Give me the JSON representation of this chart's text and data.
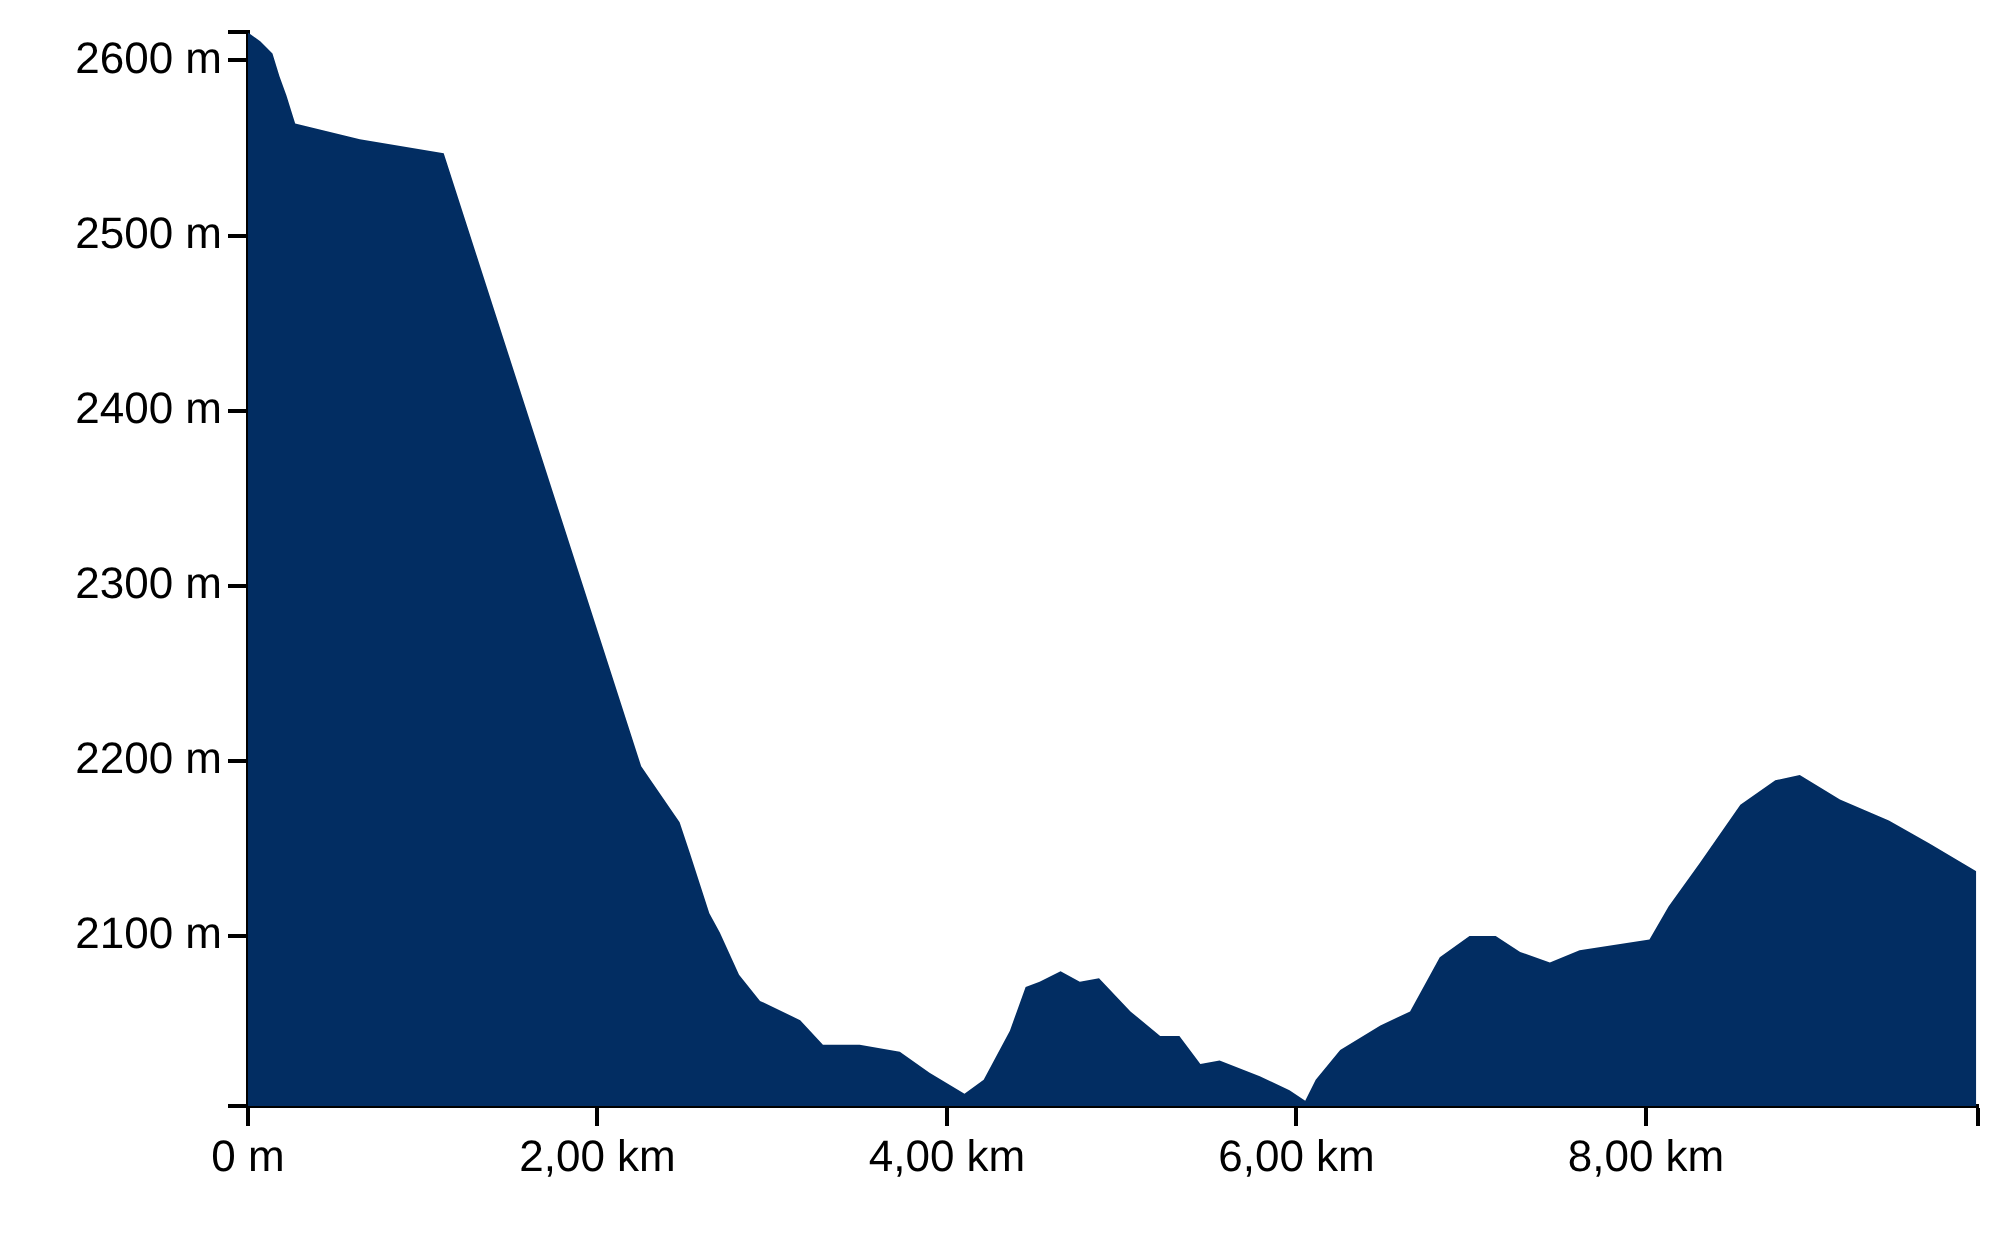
{
  "chart_data": {
    "type": "area",
    "x": [
      0,
      0.07,
      0.14,
      0.18,
      0.22,
      0.27,
      0.64,
      1.12,
      2.25,
      2.47,
      2.53,
      2.64,
      2.7,
      2.81,
      2.93,
      3.16,
      3.29,
      3.5,
      3.73,
      3.9,
      4.1,
      4.21,
      4.36,
      4.45,
      4.53,
      4.65,
      4.76,
      4.87,
      5.05,
      5.22,
      5.33,
      5.45,
      5.56,
      5.79,
      5.96,
      6.05,
      6.11,
      6.25,
      6.48,
      6.65,
      6.82,
      6.99,
      7.14,
      7.28,
      7.45,
      7.62,
      8.02,
      8.13,
      8.31,
      8.54,
      8.74,
      8.88,
      9.11,
      9.39,
      9.62,
      9.89
    ],
    "series": [
      {
        "color": "#022d62",
        "values": [
          2616,
          2611,
          2604,
          2591,
          2580,
          2564,
          2555,
          2547,
          2197,
          2165,
          2147,
          2113,
          2102,
          2078,
          2063,
          2052,
          2038,
          2038,
          2034,
          2022,
          2010,
          2018,
          2046,
          2071,
          2074,
          2080,
          2074,
          2076,
          2057,
          2043,
          2043,
          2027,
          2029,
          2020,
          2012,
          2006,
          2018,
          2035,
          2049,
          2057,
          2088,
          2100,
          2100,
          2091,
          2085,
          2092,
          2098,
          2117,
          2142,
          2175,
          2189,
          2192,
          2178,
          2166,
          2153,
          2137
        ]
      }
    ],
    "xlim": [
      0,
      9.9
    ],
    "xticks": [
      {
        "value": 0,
        "label": "0 m"
      },
      {
        "value": 2,
        "label": "2,00 km"
      },
      {
        "value": 4,
        "label": "4,00 km"
      },
      {
        "value": 6,
        "label": "6,00 km"
      },
      {
        "value": 8,
        "label": "8,00 km"
      },
      {
        "value": 9.9,
        "label": null
      }
    ],
    "ylim": [
      2003,
      2616
    ],
    "yticks": [
      {
        "value": 2003,
        "label": null
      },
      {
        "value": 2100,
        "label": "2100 m"
      },
      {
        "value": 2200,
        "label": "2200 m"
      },
      {
        "value": 2300,
        "label": "2300 m"
      },
      {
        "value": 2400,
        "label": "2400 m"
      },
      {
        "value": 2500,
        "label": "2500 m"
      },
      {
        "value": 2600,
        "label": "2600 m"
      },
      {
        "value": 2616,
        "label": null
      }
    ],
    "grid": false,
    "legend": false,
    "marker": "none"
  }
}
